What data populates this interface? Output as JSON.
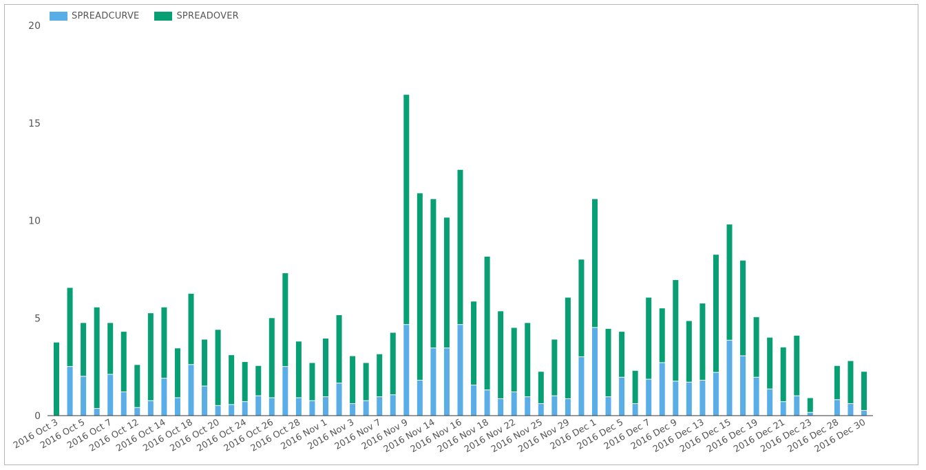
{
  "colors": {
    "spreadcurve": "#5aaee8",
    "spreadover": "#079f73",
    "axis": "#333333",
    "text": "#555555"
  },
  "chart_data": {
    "type": "bar",
    "stacked": true,
    "legend_position": "top-left",
    "grid": false,
    "ylim": [
      0,
      20
    ],
    "yticks": [
      0,
      5,
      10,
      15,
      20
    ],
    "categories": [
      "2016 Oct 3",
      "2016 Oct 4",
      "2016 Oct 5",
      "2016 Oct 6",
      "2016 Oct 7",
      "2016 Oct 11",
      "2016 Oct 12",
      "2016 Oct 13",
      "2016 Oct 14",
      "2016 Oct 17",
      "2016 Oct 18",
      "2016 Oct 19",
      "2016 Oct 20",
      "2016 Oct 21",
      "2016 Oct 24",
      "2016 Oct 25",
      "2016 Oct 26",
      "2016 Oct 27",
      "2016 Oct 28",
      "2016 Oct 31",
      "2016 Nov 1",
      "2016 Nov 2",
      "2016 Nov 3",
      "2016 Nov 4",
      "2016 Nov 7",
      "2016 Nov 8",
      "2016 Nov 9",
      "2016 Nov 10",
      "2016 Nov 14",
      "2016 Nov 15",
      "2016 Nov 16",
      "2016 Nov 17",
      "2016 Nov 18",
      "2016 Nov 21",
      "2016 Nov 22",
      "2016 Nov 23",
      "2016 Nov 25",
      "2016 Nov 28",
      "2016 Nov 29",
      "2016 Nov 30",
      "2016 Dec 1",
      "2016 Dec 2",
      "2016 Dec 5",
      "2016 Dec 6",
      "2016 Dec 7",
      "2016 Dec 8",
      "2016 Dec 9",
      "2016 Dec 12",
      "2016 Dec 13",
      "2016 Dec 14",
      "2016 Dec 15",
      "2016 Dec 16",
      "2016 Dec 19",
      "2016 Dec 20",
      "2016 Dec 21",
      "2016 Dec 22",
      "2016 Dec 23",
      "2016 Dec 27",
      "2016 Dec 28",
      "2016 Dec 29",
      "2016 Dec 30"
    ],
    "tick_labels": [
      "2016 Oct 3",
      "2016 Oct 5",
      "2016 Oct 7",
      "2016 Oct 12",
      "2016 Oct 14",
      "2016 Oct 18",
      "2016 Oct 20",
      "2016 Oct 24",
      "2016 Oct 26",
      "2016 Oct 28",
      "2016 Nov 1",
      "2016 Nov 3",
      "2016 Nov 7",
      "2016 Nov 9",
      "2016 Nov 14",
      "2016 Nov 16",
      "2016 Nov 18",
      "2016 Nov 22",
      "2016 Nov 25",
      "2016 Nov 29",
      "2016 Dec 1",
      "2016 Dec 5",
      "2016 Dec 7",
      "2016 Dec 9",
      "2016 Dec 13",
      "2016 Dec 15",
      "2016 Dec 19",
      "2016 Dec 21",
      "2016 Dec 23",
      "2016 Dec 28",
      "2016 Dec 30"
    ],
    "series": [
      {
        "name": "SPREADCURVE",
        "values": [
          0,
          2.5,
          2.0,
          0.35,
          2.1,
          1.2,
          0.4,
          0.75,
          1.9,
          0.9,
          2.6,
          1.5,
          0.5,
          0.55,
          0.7,
          1.0,
          0.9,
          2.5,
          0.9,
          0.75,
          0.95,
          1.65,
          0.6,
          0.75,
          0.95,
          1.05,
          4.65,
          1.8,
          3.45,
          3.45,
          4.65,
          1.55,
          1.3,
          0.85,
          1.2,
          0.95,
          0.6,
          1.0,
          0.85,
          3.0,
          4.5,
          0.95,
          1.95,
          0.6,
          1.85,
          2.7,
          1.75,
          1.7,
          1.8,
          2.2,
          3.85,
          3.05,
          1.95,
          1.35,
          0.7,
          1.0,
          0.15,
          0,
          0.8,
          0.6,
          0.25
        ]
      },
      {
        "name": "SPREADOVER",
        "values": [
          3.75,
          4.05,
          2.75,
          5.2,
          2.65,
          3.1,
          2.2,
          4.5,
          3.65,
          2.55,
          3.65,
          2.4,
          3.9,
          2.55,
          2.05,
          1.55,
          4.1,
          4.8,
          2.9,
          1.95,
          3.0,
          3.5,
          2.45,
          1.95,
          2.2,
          3.2,
          11.8,
          9.6,
          7.65,
          6.7,
          7.95,
          4.3,
          6.85,
          4.5,
          3.3,
          3.8,
          1.65,
          2.9,
          5.2,
          5.0,
          6.6,
          3.5,
          2.35,
          1.7,
          4.2,
          2.8,
          5.2,
          3.15,
          3.95,
          6.05,
          5.95,
          4.9,
          3.1,
          2.65,
          2.8,
          3.1,
          0.75,
          0,
          1.75,
          2.2,
          2.0
        ]
      }
    ]
  }
}
